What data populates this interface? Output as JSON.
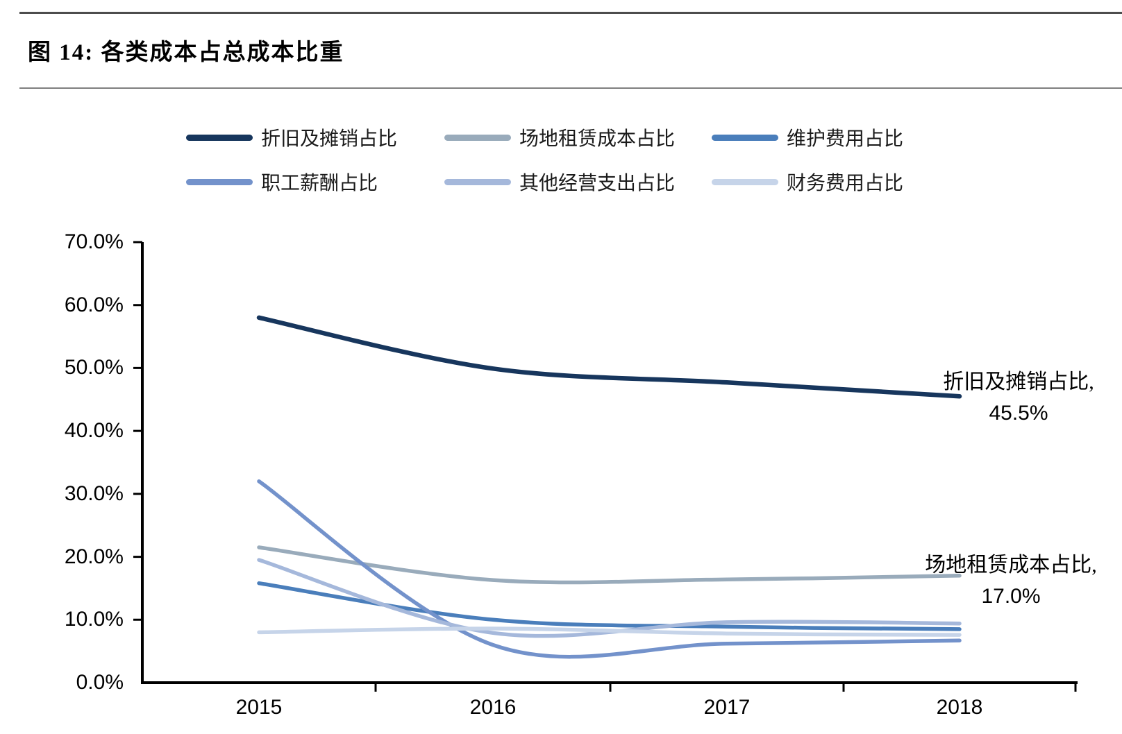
{
  "header": {
    "title": "图 14:  各类成本占总成本比重"
  },
  "chart_data": {
    "type": "line",
    "title": "各类成本占总成本比重",
    "line_style": "smooth",
    "grid": false,
    "legend_position": "top",
    "x_tick_labels": [
      "2015",
      "2016",
      "2017",
      "2018"
    ],
    "x": [
      2015,
      2016,
      2017,
      2018
    ],
    "y_axis": {
      "min": 0,
      "max": 70,
      "step": 10,
      "unit": "%",
      "tick_labels": [
        "0.0%",
        "10.0%",
        "20.0%",
        "30.0%",
        "40.0%",
        "50.0%",
        "60.0%",
        "70.0%"
      ]
    },
    "series": [
      {
        "name": "折旧及摊销占比",
        "color": "#17365D",
        "values": [
          58.0,
          49.9,
          47.7,
          45.5
        ]
      },
      {
        "name": "场地租赁成本占比",
        "color": "#99ABBB",
        "values": [
          21.5,
          16.3,
          16.4,
          17.0
        ]
      },
      {
        "name": "维护费用占比",
        "color": "#4A7EBB",
        "values": [
          15.8,
          10.0,
          8.9,
          8.5
        ]
      },
      {
        "name": "职工薪酬占比",
        "color": "#7392CB",
        "values": [
          32.0,
          6.0,
          6.2,
          6.7
        ]
      },
      {
        "name": "其他经营支出占比",
        "color": "#A5B8DB",
        "values": [
          19.5,
          7.9,
          9.6,
          9.4
        ]
      },
      {
        "name": "财务费用占比",
        "color": "#C6D4E9",
        "values": [
          8.0,
          8.6,
          7.8,
          7.6
        ]
      }
    ],
    "annotations": [
      {
        "series": "折旧及摊销占比",
        "line1": "折旧及摊销占比,",
        "line2": "45.5%",
        "value": "45.5%"
      },
      {
        "series": "场地租赁成本占比",
        "line1": "场地租赁成本占比,",
        "line2": "17.0%",
        "value": "17.0%"
      }
    ],
    "colors": {
      "axis": "#000000",
      "rule_top": "#4d4d4d",
      "rule_title": "#7f7f7f"
    }
  }
}
